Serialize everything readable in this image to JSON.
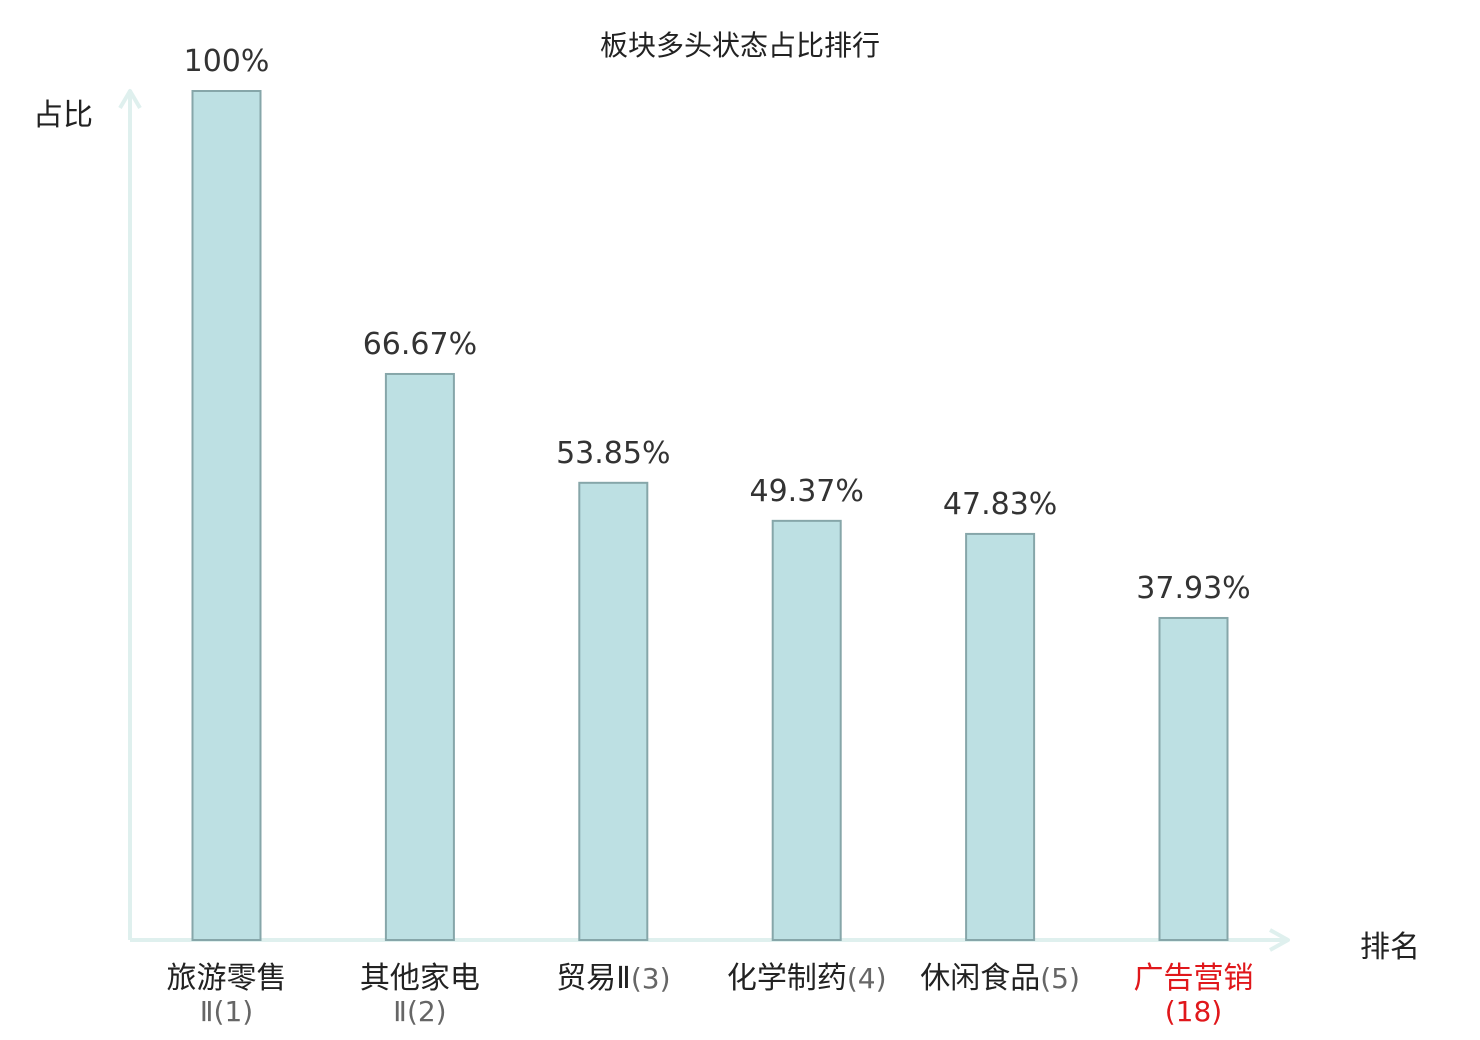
{
  "chart_data": {
    "type": "bar",
    "title": "板块多头状态占比排行",
    "ylabel": "占比",
    "xlabel": "排名",
    "ylim": [
      0,
      100
    ],
    "grid": false,
    "categories": [
      {
        "name": "旅游零售",
        "rank": "Ⅱ(1)",
        "value": 100,
        "label": "100%",
        "highlight": false
      },
      {
        "name": "其他家电",
        "rank": "Ⅱ(2)",
        "value": 66.67,
        "label": "66.67%",
        "highlight": false
      },
      {
        "name": "贸易Ⅱ",
        "rank": "(3)",
        "value": 53.85,
        "label": "53.85%",
        "highlight": false
      },
      {
        "name": "化学制药",
        "rank": "(4)",
        "value": 49.37,
        "label": "49.37%",
        "highlight": false
      },
      {
        "name": "休闲食品",
        "rank": "(5)",
        "value": 47.83,
        "label": "47.83%",
        "highlight": false
      },
      {
        "name": "广告营销",
        "rank": "(18)",
        "value": 37.93,
        "label": "37.93%",
        "highlight": true
      }
    ],
    "colors": {
      "bar_fill": "#bde0e3",
      "bar_stroke": "#86a6a9",
      "axis": "#dff0ee",
      "highlight_text": "#e0171b"
    }
  }
}
